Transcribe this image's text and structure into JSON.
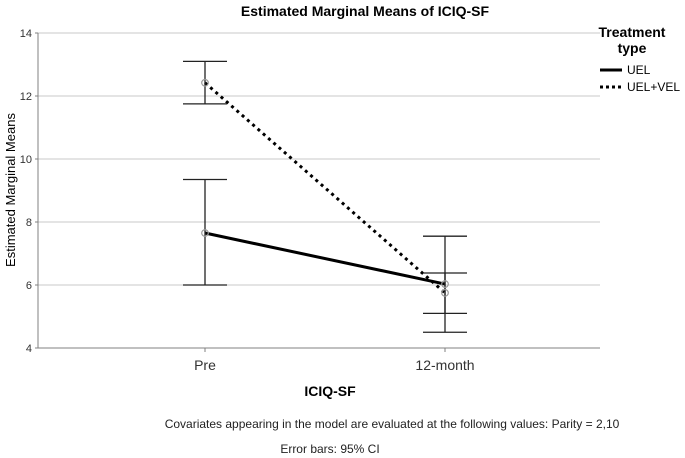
{
  "chart_data": {
    "type": "line",
    "title": "Estimated Marginal Means of ICIQ-SF",
    "xlabel": "ICIQ-SF",
    "ylabel": "Estimated Marginal Means",
    "categories": [
      "Pre",
      "12-month"
    ],
    "ylim": [
      4,
      14
    ],
    "yticks": [
      4,
      6,
      8,
      10,
      12,
      14
    ],
    "grid": true,
    "legend": {
      "title": "Treatment type",
      "title_lines": [
        "Treatment",
        "type"
      ],
      "position": "right"
    },
    "series": [
      {
        "name": "UEL",
        "style": "solid",
        "color": "#000000",
        "values": [
          7.65,
          6.03
        ],
        "ci_lower": [
          6.0,
          4.5
        ],
        "ci_upper": [
          9.35,
          7.55
        ]
      },
      {
        "name": "UEL+VEL",
        "style": "dotted",
        "color": "#000000",
        "values": [
          12.42,
          5.75
        ],
        "ci_lower": [
          11.75,
          5.1
        ],
        "ci_upper": [
          13.1,
          6.38
        ]
      }
    ],
    "notes": [
      "Covariates appearing in the model are evaluated at the following values: Parity = 2,10",
      "Error bars: 95% CI"
    ]
  },
  "colors": {
    "grid": "#c8c8c8",
    "axis": "#808080",
    "marker": "#9a9a9a"
  }
}
